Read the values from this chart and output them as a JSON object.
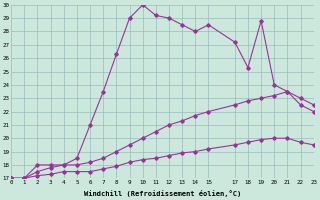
{
  "xlabel": "Windchill (Refroidissement éolien,°C)",
  "bg_color": "#cce8dd",
  "grid_color": "#99bbbb",
  "line_color": "#993399",
  "xmin": 0,
  "xmax": 23,
  "ymin": 17,
  "ymax": 30,
  "series1_x": [
    0,
    1,
    2,
    3,
    4,
    5,
    6,
    7,
    8,
    9,
    10,
    11,
    12,
    13,
    14,
    15,
    17,
    18,
    19,
    20,
    21,
    22,
    23
  ],
  "series1_y": [
    17.0,
    17.0,
    18.0,
    18.0,
    18.0,
    18.5,
    21.0,
    23.5,
    26.3,
    29.0,
    30.0,
    29.2,
    29.0,
    28.5,
    28.0,
    28.5,
    27.2,
    25.3,
    28.8,
    24.0,
    23.5,
    22.5,
    22.0
  ],
  "series2_x": [
    0,
    1,
    2,
    3,
    4,
    5,
    6,
    7,
    8,
    9,
    10,
    11,
    12,
    13,
    14,
    15,
    17,
    18,
    19,
    20,
    21,
    22,
    23
  ],
  "series2_y": [
    17.0,
    17.0,
    17.5,
    17.8,
    18.0,
    18.0,
    18.2,
    18.5,
    19.0,
    19.5,
    20.0,
    20.5,
    21.0,
    21.3,
    21.7,
    22.0,
    22.5,
    22.8,
    23.0,
    23.2,
    23.5,
    23.0,
    22.5
  ],
  "series3_x": [
    0,
    1,
    2,
    3,
    4,
    5,
    6,
    7,
    8,
    9,
    10,
    11,
    12,
    13,
    14,
    15,
    17,
    18,
    19,
    20,
    21,
    22,
    23
  ],
  "series3_y": [
    17.0,
    17.0,
    17.2,
    17.3,
    17.5,
    17.5,
    17.5,
    17.7,
    17.9,
    18.2,
    18.4,
    18.5,
    18.7,
    18.9,
    19.0,
    19.2,
    19.5,
    19.7,
    19.9,
    20.0,
    20.0,
    19.7,
    19.5
  ],
  "xticks": [
    0,
    1,
    2,
    3,
    4,
    5,
    6,
    7,
    8,
    9,
    10,
    11,
    12,
    13,
    14,
    15,
    17,
    18,
    19,
    20,
    21,
    22,
    23
  ],
  "yticks": [
    17,
    18,
    19,
    20,
    21,
    22,
    23,
    24,
    25,
    26,
    27,
    28,
    29,
    30
  ]
}
